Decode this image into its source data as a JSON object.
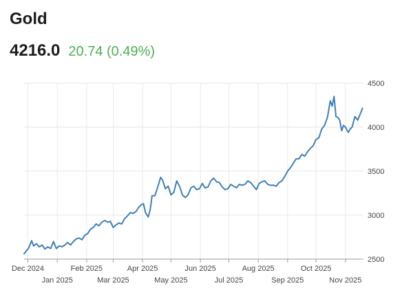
{
  "header": {
    "title": "Gold",
    "price": "4216.0",
    "change": "20.74 (0.49%)",
    "change_color": "#4caf50"
  },
  "chart_data": {
    "type": "line",
    "title": "Gold",
    "xlabel": "",
    "ylabel": "",
    "ylim": [
      2500,
      4500
    ],
    "yticks": [
      2500,
      3000,
      3500,
      4000,
      4500
    ],
    "xlim": [
      "2024-11-27",
      "2025-11-20"
    ],
    "x_ticks": [
      {
        "date": "2024-12-01",
        "label": "Dec 2024",
        "row": 1
      },
      {
        "date": "2025-01-01",
        "label": "Jan 2025",
        "row": 2
      },
      {
        "date": "2025-02-01",
        "label": "Feb 2025",
        "row": 1
      },
      {
        "date": "2025-03-01",
        "label": "Mar 2025",
        "row": 2
      },
      {
        "date": "2025-04-01",
        "label": "Apr 2025",
        "row": 1
      },
      {
        "date": "2025-05-01",
        "label": "May 2025",
        "row": 2
      },
      {
        "date": "2025-06-01",
        "label": "Jun 2025",
        "row": 1
      },
      {
        "date": "2025-07-01",
        "label": "Jul 2025",
        "row": 2
      },
      {
        "date": "2025-08-01",
        "label": "Aug 2025",
        "row": 1
      },
      {
        "date": "2025-09-01",
        "label": "Sep 2025",
        "row": 2
      },
      {
        "date": "2025-10-01",
        "label": "Oct 2025",
        "row": 1
      },
      {
        "date": "2025-11-01",
        "label": "Nov 2025",
        "row": 2
      }
    ],
    "grid": true,
    "series": [
      {
        "name": "Gold",
        "color": "#3f7fb6",
        "points": [
          [
            "2024-11-27",
            2560
          ],
          [
            "2024-12-02",
            2630
          ],
          [
            "2024-12-05",
            2710
          ],
          [
            "2024-12-07",
            2650
          ],
          [
            "2024-12-10",
            2675
          ],
          [
            "2024-12-13",
            2640
          ],
          [
            "2024-12-16",
            2660
          ],
          [
            "2024-12-19",
            2615
          ],
          [
            "2024-12-22",
            2640
          ],
          [
            "2024-12-25",
            2620
          ],
          [
            "2024-12-28",
            2700
          ],
          [
            "2024-12-31",
            2620
          ],
          [
            "2025-01-03",
            2650
          ],
          [
            "2025-01-06",
            2640
          ],
          [
            "2025-01-09",
            2660
          ],
          [
            "2025-01-12",
            2690
          ],
          [
            "2025-01-15",
            2660
          ],
          [
            "2025-01-18",
            2700
          ],
          [
            "2025-01-21",
            2730
          ],
          [
            "2025-01-24",
            2740
          ],
          [
            "2025-01-27",
            2720
          ],
          [
            "2025-01-30",
            2770
          ],
          [
            "2025-02-02",
            2790
          ],
          [
            "2025-02-05",
            2840
          ],
          [
            "2025-02-08",
            2860
          ],
          [
            "2025-02-11",
            2900
          ],
          [
            "2025-02-14",
            2880
          ],
          [
            "2025-02-17",
            2920
          ],
          [
            "2025-02-20",
            2940
          ],
          [
            "2025-02-23",
            2920
          ],
          [
            "2025-02-26",
            2930
          ],
          [
            "2025-03-01",
            2860
          ],
          [
            "2025-03-04",
            2890
          ],
          [
            "2025-03-07",
            2910
          ],
          [
            "2025-03-10",
            2900
          ],
          [
            "2025-03-13",
            2960
          ],
          [
            "2025-03-16",
            2990
          ],
          [
            "2025-03-19",
            3030
          ],
          [
            "2025-03-22",
            3020
          ],
          [
            "2025-03-25",
            3040
          ],
          [
            "2025-03-28",
            3090
          ],
          [
            "2025-03-31",
            3120
          ],
          [
            "2025-04-02",
            3130
          ],
          [
            "2025-04-04",
            3030
          ],
          [
            "2025-04-07",
            2980
          ],
          [
            "2025-04-09",
            3060
          ],
          [
            "2025-04-11",
            3220
          ],
          [
            "2025-04-14",
            3220
          ],
          [
            "2025-04-17",
            3320
          ],
          [
            "2025-04-20",
            3430
          ],
          [
            "2025-04-22",
            3400
          ],
          [
            "2025-04-25",
            3300
          ],
          [
            "2025-04-28",
            3330
          ],
          [
            "2025-05-01",
            3230
          ],
          [
            "2025-05-04",
            3260
          ],
          [
            "2025-05-07",
            3390
          ],
          [
            "2025-05-10",
            3330
          ],
          [
            "2025-05-13",
            3230
          ],
          [
            "2025-05-16",
            3200
          ],
          [
            "2025-05-19",
            3230
          ],
          [
            "2025-05-22",
            3310
          ],
          [
            "2025-05-25",
            3330
          ],
          [
            "2025-05-28",
            3290
          ],
          [
            "2025-05-31",
            3300
          ],
          [
            "2025-06-03",
            3360
          ],
          [
            "2025-06-06",
            3310
          ],
          [
            "2025-06-09",
            3320
          ],
          [
            "2025-06-12",
            3390
          ],
          [
            "2025-06-15",
            3420
          ],
          [
            "2025-06-18",
            3380
          ],
          [
            "2025-06-21",
            3370
          ],
          [
            "2025-06-24",
            3320
          ],
          [
            "2025-06-27",
            3290
          ],
          [
            "2025-06-30",
            3300
          ],
          [
            "2025-07-03",
            3350
          ],
          [
            "2025-07-06",
            3330
          ],
          [
            "2025-07-09",
            3310
          ],
          [
            "2025-07-12",
            3350
          ],
          [
            "2025-07-15",
            3340
          ],
          [
            "2025-07-18",
            3350
          ],
          [
            "2025-07-21",
            3390
          ],
          [
            "2025-07-24",
            3370
          ],
          [
            "2025-07-27",
            3330
          ],
          [
            "2025-07-30",
            3290
          ],
          [
            "2025-08-02",
            3360
          ],
          [
            "2025-08-05",
            3380
          ],
          [
            "2025-08-08",
            3390
          ],
          [
            "2025-08-11",
            3350
          ],
          [
            "2025-08-14",
            3340
          ],
          [
            "2025-08-17",
            3340
          ],
          [
            "2025-08-20",
            3330
          ],
          [
            "2025-08-23",
            3370
          ],
          [
            "2025-08-26",
            3390
          ],
          [
            "2025-08-29",
            3440
          ],
          [
            "2025-09-01",
            3500
          ],
          [
            "2025-09-04",
            3540
          ],
          [
            "2025-09-07",
            3590
          ],
          [
            "2025-09-10",
            3640
          ],
          [
            "2025-09-13",
            3640
          ],
          [
            "2025-09-16",
            3690
          ],
          [
            "2025-09-19",
            3670
          ],
          [
            "2025-09-22",
            3720
          ],
          [
            "2025-09-25",
            3760
          ],
          [
            "2025-09-28",
            3790
          ],
          [
            "2025-10-01",
            3860
          ],
          [
            "2025-10-04",
            3880
          ],
          [
            "2025-10-07",
            3980
          ],
          [
            "2025-10-10",
            4020
          ],
          [
            "2025-10-13",
            4110
          ],
          [
            "2025-10-16",
            4300
          ],
          [
            "2025-10-18",
            4240
          ],
          [
            "2025-10-20",
            4350
          ],
          [
            "2025-10-22",
            4120
          ],
          [
            "2025-10-24",
            4110
          ],
          [
            "2025-10-26",
            4080
          ],
          [
            "2025-10-28",
            3960
          ],
          [
            "2025-10-30",
            4020
          ],
          [
            "2025-11-01",
            4000
          ],
          [
            "2025-11-04",
            3940
          ],
          [
            "2025-11-06",
            3980
          ],
          [
            "2025-11-08",
            4000
          ],
          [
            "2025-11-11",
            4120
          ],
          [
            "2025-11-14",
            4080
          ],
          [
            "2025-11-17",
            4160
          ],
          [
            "2025-11-19",
            4216
          ]
        ]
      }
    ]
  }
}
